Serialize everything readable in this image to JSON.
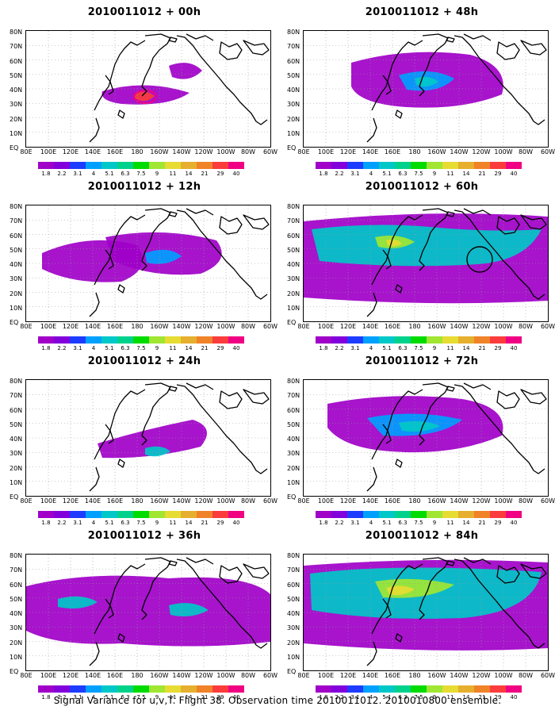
{
  "panels": [
    {
      "title": "2010011012 + 00h",
      "level": 0
    },
    {
      "title": "2010011012 + 48h",
      "level": 4
    },
    {
      "title": "2010011012 + 12h",
      "level": 1
    },
    {
      "title": "2010011012 + 60h",
      "level": 5
    },
    {
      "title": "2010011012 + 24h",
      "level": 2
    },
    {
      "title": "2010011012 + 72h",
      "level": 6
    },
    {
      "title": "2010011012 + 36h",
      "level": 3
    },
    {
      "title": "2010011012 + 84h",
      "level": 7
    }
  ],
  "lat_labels": [
    "80N",
    "70N",
    "60N",
    "50N",
    "40N",
    "30N",
    "20N",
    "10N",
    "EQ"
  ],
  "lon_labels": [
    "80E",
    "100E",
    "120E",
    "140E",
    "160E",
    "180",
    "160W",
    "140W",
    "120W",
    "100W",
    "80W",
    "60W"
  ],
  "colorbar": {
    "colors": [
      "#a000c8",
      "#8200dc",
      "#1e3cff",
      "#00a0ff",
      "#00c8c8",
      "#00d28c",
      "#00dc00",
      "#a0e632",
      "#e6dc32",
      "#e6af2d",
      "#f08228",
      "#fa3c3c",
      "#f00082"
    ],
    "labels": [
      "1.8",
      "2.2",
      "3.1",
      "4",
      "5.1",
      "6.3",
      "7.5",
      "9",
      "11",
      "14",
      "21",
      "29",
      "40"
    ]
  },
  "colorbar_left_labels": [
    "1.8",
    "2.2",
    "3.1",
    "4",
    "5.1",
    "6.3",
    "7.5",
    "9",
    "11",
    "14",
    "21",
    "29",
    "40"
  ],
  "caption": "Signal Variance for u,v,T. Flight 38. Observation time 2010011012. 2010010800 ensemble."
}
